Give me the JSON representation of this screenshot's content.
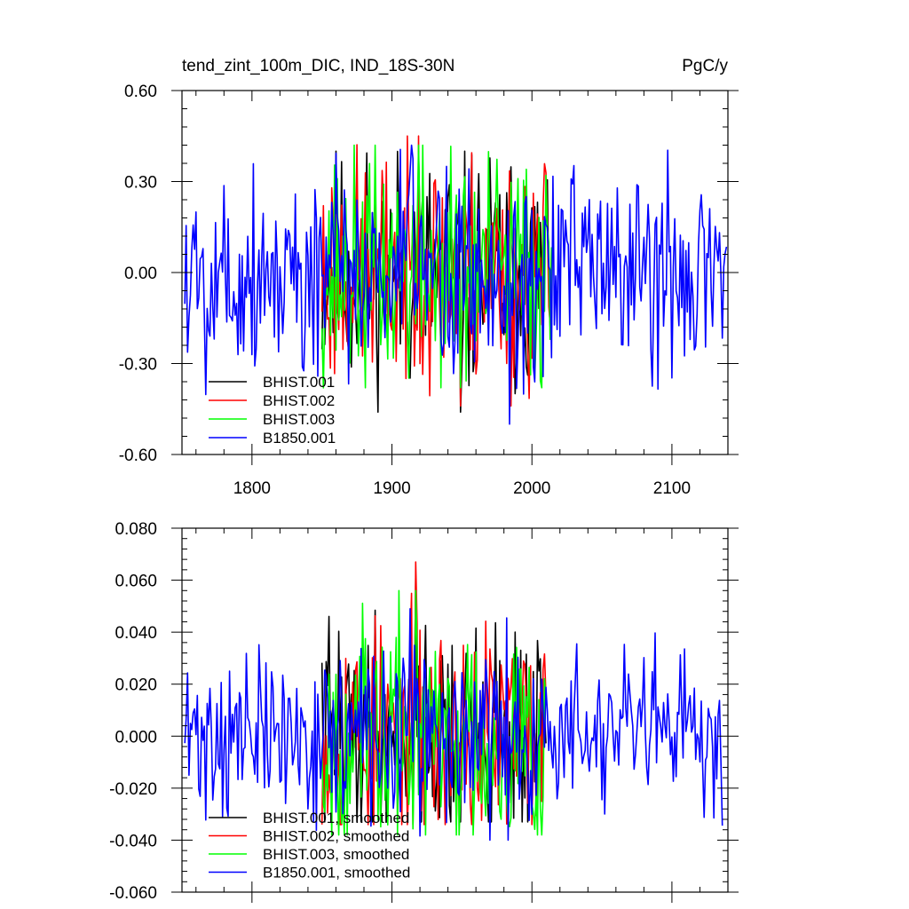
{
  "chart_data": [
    {
      "type": "line",
      "title": "tend_zint_100m_DIC, IND_18S-30N",
      "units": "PgC/y",
      "xlim": [
        1750,
        2140
      ],
      "ylim": [
        -0.6,
        0.6
      ],
      "x_ticks": [
        1800,
        1900,
        2000,
        2100
      ],
      "y_ticks": [
        -0.6,
        -0.3,
        0.0,
        0.3,
        0.6
      ],
      "y_tick_labels": [
        "-0.60",
        "-0.30",
        "0.00",
        "0.30",
        "0.60"
      ],
      "legend_position": "bottom-left",
      "series": [
        {
          "name": "BHIST.001",
          "color": "#000000",
          "x_start": 1850,
          "x_end": 2014,
          "amplitude": 0.2,
          "peak": 0.4,
          "trough": -0.46,
          "seed": 11
        },
        {
          "name": "BHIST.002",
          "color": "#ff0000",
          "x_start": 1850,
          "x_end": 2014,
          "amplitude": 0.2,
          "peak": 0.45,
          "trough": -0.44,
          "seed": 23
        },
        {
          "name": "BHIST.003",
          "color": "#00ff00",
          "x_start": 1850,
          "x_end": 2014,
          "amplitude": 0.2,
          "peak": 0.42,
          "trough": -0.38,
          "seed": 37
        },
        {
          "name": "B1850.001",
          "color": "#0000ff",
          "x_start": 1752,
          "x_end": 2139,
          "amplitude": 0.18,
          "peak": 0.42,
          "trough": -0.5,
          "seed": 5
        }
      ]
    },
    {
      "type": "line",
      "xlim": [
        1750,
        2140
      ],
      "ylim": [
        -0.06,
        0.08
      ],
      "x_ticks": [
        1800,
        1900,
        2000,
        2100
      ],
      "y_ticks": [
        -0.06,
        -0.04,
        -0.02,
        0.0,
        0.02,
        0.04,
        0.06,
        0.08
      ],
      "y_tick_labels": [
        "-0.060",
        "-0.040",
        "-0.020",
        "0.000",
        "0.020",
        "0.040",
        "0.060",
        "0.080"
      ],
      "legend_position": "bottom-left",
      "series": [
        {
          "name": "BHIST.001, smoothed",
          "color": "#000000",
          "x_start": 1850,
          "x_end": 2010,
          "amplitude": 0.022,
          "peak": 0.061,
          "trough": -0.033,
          "seed": 41
        },
        {
          "name": "BHIST.002, smoothed",
          "color": "#ff0000",
          "x_start": 1850,
          "x_end": 2010,
          "amplitude": 0.022,
          "peak": 0.067,
          "trough": -0.034,
          "seed": 53
        },
        {
          "name": "BHIST.003, smoothed",
          "color": "#00ff00",
          "x_start": 1850,
          "x_end": 2010,
          "amplitude": 0.022,
          "peak": 0.056,
          "trough": -0.038,
          "seed": 67
        },
        {
          "name": "B1850.001, smoothed",
          "color": "#0000ff",
          "x_start": 1752,
          "x_end": 2136,
          "amplitude": 0.016,
          "peak": 0.049,
          "trough": -0.04,
          "seed": 71
        }
      ]
    }
  ]
}
